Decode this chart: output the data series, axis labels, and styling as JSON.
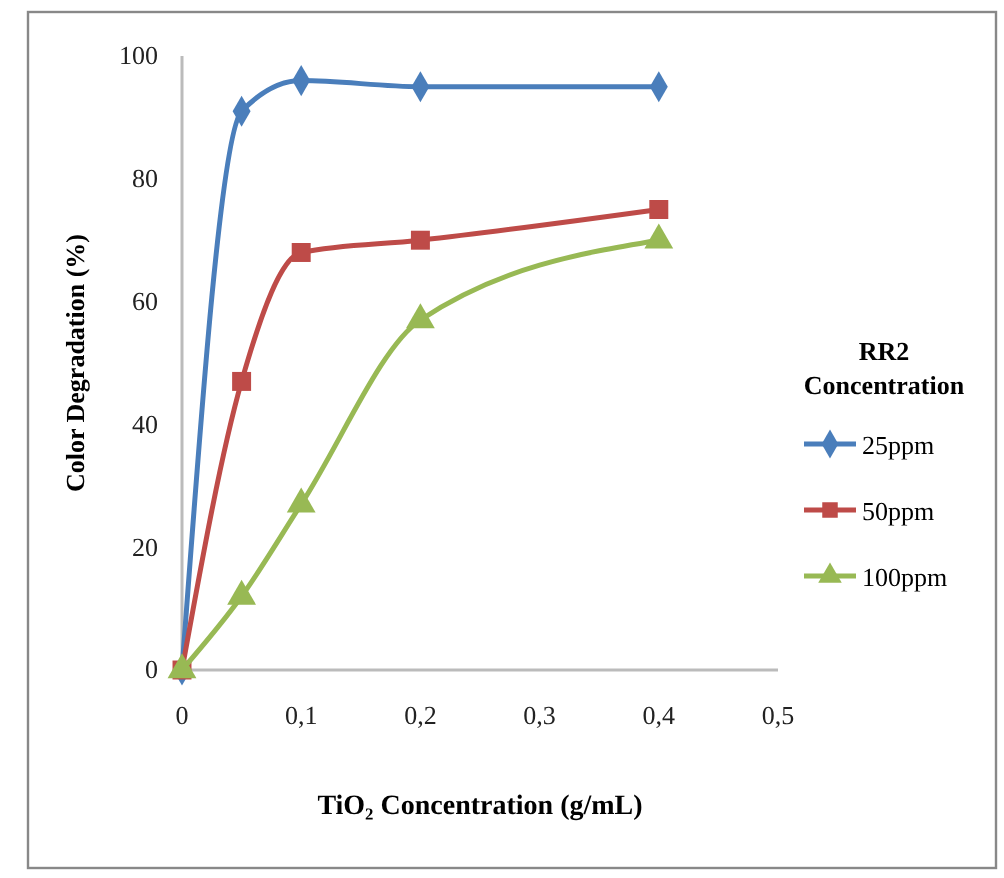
{
  "chart_data": {
    "type": "line",
    "xlabel": "TiO₂ Concentration (g/mL)",
    "ylabel": "Color Degradation  (%)",
    "legend_title": "RR2 Concentration",
    "legend": "right",
    "grid": false,
    "x": [
      0,
      0.05,
      0.1,
      0.2,
      0.4
    ],
    "xlim": [
      0,
      0.5
    ],
    "xticks": [
      0,
      {
        "value": 0.1,
        "label": "0,1"
      },
      {
        "value": 0.2,
        "label": "0,2"
      },
      {
        "value": 0.3,
        "label": "0,3"
      },
      {
        "value": 0.4,
        "label": "0,4"
      },
      {
        "value": 0.5,
        "label": "0,5"
      }
    ],
    "ylim": [
      0,
      100
    ],
    "yticks": [
      0,
      20,
      40,
      60,
      80,
      100
    ],
    "series": [
      {
        "name": "25ppm",
        "color": "#4a7ebb",
        "marker": "diamond",
        "values": [
          0,
          91,
          96,
          95,
          95
        ]
      },
      {
        "name": "50ppm",
        "color": "#be4b48",
        "marker": "square",
        "values": [
          0,
          47,
          68,
          70,
          75
        ]
      },
      {
        "name": "100ppm",
        "color": "#98b954",
        "marker": "triangle",
        "values": [
          0,
          12,
          27,
          57,
          70
        ]
      }
    ]
  }
}
